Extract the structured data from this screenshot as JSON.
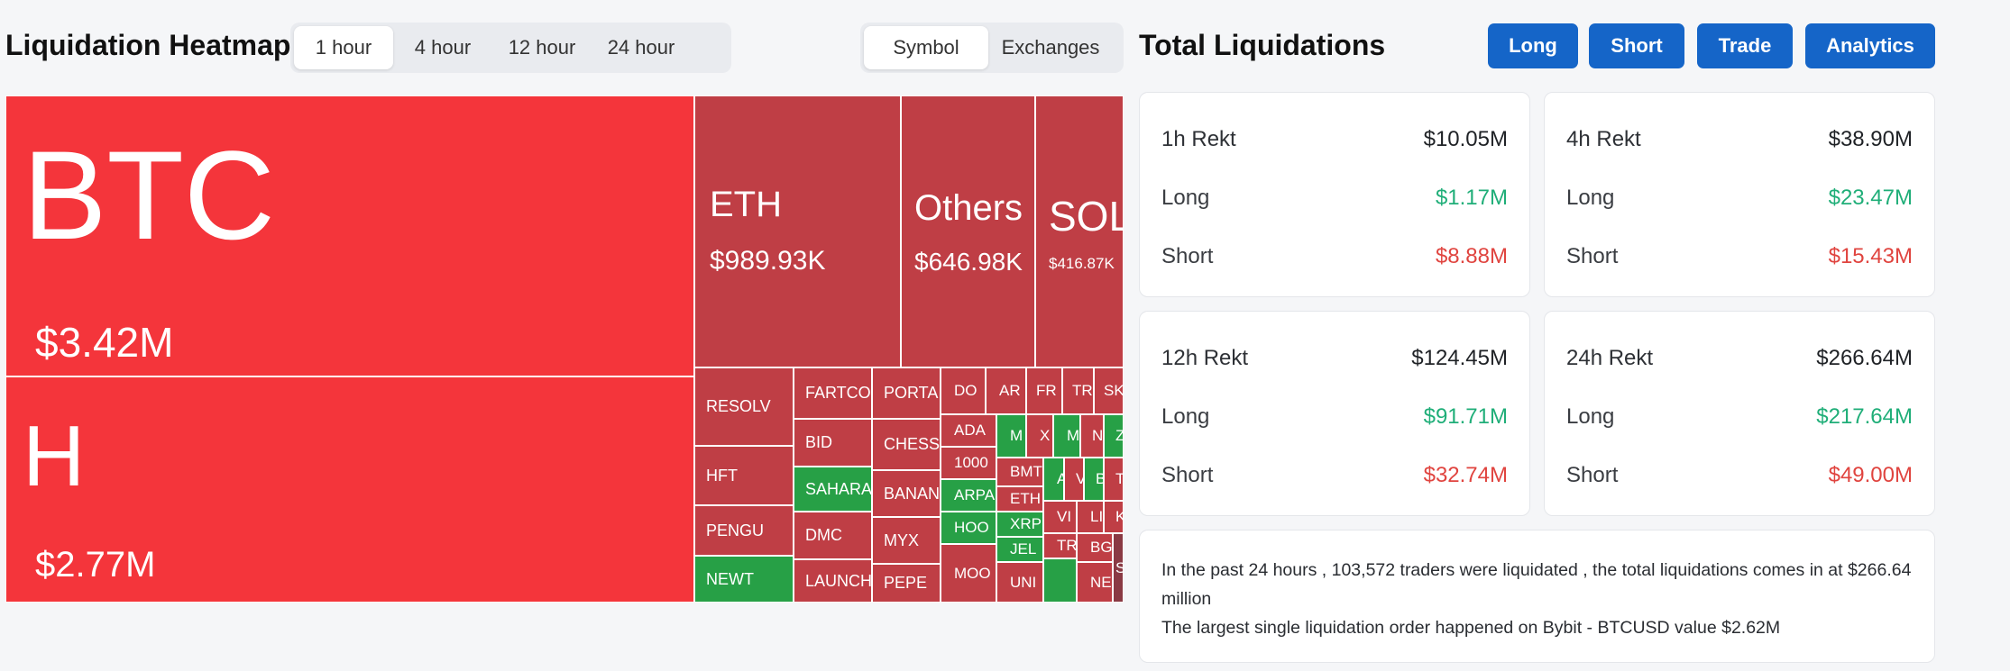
{
  "heatmap": {
    "title": "Liquidation Heatmap",
    "time_options": [
      "1 hour",
      "4 hour",
      "12 hour",
      "24 hour"
    ],
    "active_time": "1 hour",
    "view_options": [
      "Symbol",
      "Exchanges"
    ],
    "active_view": "Symbol",
    "tiles": [
      {
        "name": "BTC",
        "value": "$3.42M"
      },
      {
        "name": "H",
        "value": "$2.77M"
      },
      {
        "name": "ETH",
        "value": "$989.93K"
      },
      {
        "name": "Others",
        "value": "$646.98K"
      },
      {
        "name": "SOL",
        "value": "$416.87K"
      }
    ],
    "small_tiles": [
      "RESOLV",
      "HFT",
      "PENGU",
      "NEWT",
      "FARTCO",
      "BID",
      "SAHARA",
      "DMC",
      "LAUNCH",
      "PORTA",
      "CHESS",
      "BANAN",
      "MYX",
      "PEPE",
      "DO",
      "AR",
      "FR",
      "TR",
      "SK",
      "ADA",
      "1000",
      "ARPA",
      "HOO",
      "MOO",
      "M",
      "X",
      "M",
      "N",
      "Z",
      "BMT",
      "ETH",
      "XRP",
      "JEL",
      "UNI",
      "A",
      "V",
      "B",
      "T",
      "VI",
      "LI",
      "K",
      "TR",
      "BG",
      "NE",
      "S"
    ],
    "colors": {
      "strong_red": "#f4353b",
      "red": "#bf3e45",
      "green": "#27a046",
      "dark": "#8a3a44"
    }
  },
  "totals": {
    "title": "Total Liquidations",
    "buttons": [
      "Long",
      "Short",
      "Trade",
      "Analytics"
    ],
    "cards": [
      {
        "label": "1h Rekt",
        "total": "$10.05M",
        "long_label": "Long",
        "long": "$1.17M",
        "short_label": "Short",
        "short": "$8.88M"
      },
      {
        "label": "4h Rekt",
        "total": "$38.90M",
        "long_label": "Long",
        "long": "$23.47M",
        "short_label": "Short",
        "short": "$15.43M"
      },
      {
        "label": "12h Rekt",
        "total": "$124.45M",
        "long_label": "Long",
        "long": "$91.71M",
        "short_label": "Short",
        "short": "$32.74M"
      },
      {
        "label": "24h Rekt",
        "total": "$266.64M",
        "long_label": "Long",
        "long": "$217.64M",
        "short_label": "Short",
        "short": "$49.00M"
      }
    ],
    "summary_line1": "In the past 24 hours , 103,572 traders were liquidated , the total liquidations comes in at $266.64 million",
    "summary_line2": "The largest single liquidation order happened on Bybit - BTCUSD value $2.62M"
  }
}
